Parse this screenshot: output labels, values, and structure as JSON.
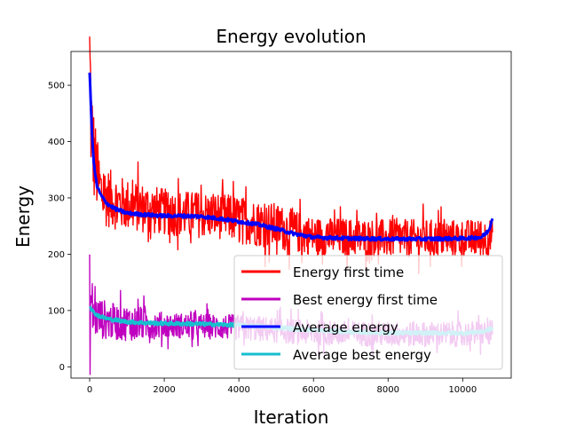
{
  "chart_data": {
    "type": "line",
    "title": "Energy evolution",
    "xlabel": "Iteration",
    "ylabel": "Energy",
    "xlim": [
      -500,
      11300
    ],
    "ylim": [
      -20,
      560
    ],
    "xticks": [
      0,
      2000,
      4000,
      6000,
      8000,
      10000
    ],
    "yticks": [
      0,
      100,
      200,
      300,
      400,
      500
    ],
    "grid": false,
    "legend_position": "lower-right",
    "series": [
      {
        "name": "Energy first time",
        "color": "#ff0000",
        "style": "noisy",
        "x": [
          0,
          50,
          100,
          200,
          300,
          500,
          800,
          1200,
          1600,
          2000,
          2500,
          3000,
          3500,
          4000,
          4500,
          5000,
          5500,
          6000,
          7000,
          8000,
          9000,
          10000,
          10500,
          10800
        ],
        "values": [
          540,
          420,
          380,
          340,
          310,
          300,
          290,
          285,
          280,
          275,
          272,
          270,
          268,
          262,
          255,
          250,
          240,
          232,
          230,
          228,
          228,
          228,
          228,
          230
        ],
        "spread": [
          200,
          150,
          120,
          90,
          80,
          70,
          65,
          60,
          60,
          55,
          55,
          55,
          55,
          55,
          55,
          55,
          50,
          45,
          45,
          45,
          45,
          45,
          45,
          45
        ]
      },
      {
        "name": "Best energy first time",
        "color": "#bf00bf",
        "style": "noisy",
        "x": [
          0,
          50,
          100,
          200,
          500,
          800,
          1200,
          1500,
          2000,
          3000,
          4000,
          5000,
          6000,
          8000,
          10000,
          10800
        ],
        "values": [
          130,
          110,
          95,
          88,
          82,
          78,
          78,
          76,
          74,
          72,
          70,
          65,
          60,
          58,
          58,
          60
        ],
        "spread": [
          110,
          80,
          60,
          50,
          45,
          42,
          42,
          38,
          30,
          30,
          30,
          30,
          30,
          30,
          30,
          30
        ]
      },
      {
        "name": "Average energy",
        "color": "#0000ff",
        "style": "smooth",
        "x": [
          0,
          30,
          60,
          100,
          150,
          200,
          300,
          400,
          500,
          700,
          1000,
          1500,
          2000,
          2500,
          3000,
          3500,
          4000,
          4500,
          5000,
          5500,
          6000,
          7000,
          8000,
          9000,
          10000,
          10500,
          10700,
          10800
        ],
        "values": [
          520,
          470,
          420,
          370,
          340,
          320,
          305,
          295,
          288,
          280,
          273,
          270,
          268,
          268,
          267,
          263,
          258,
          253,
          245,
          236,
          230,
          228,
          227,
          227,
          228,
          230,
          242,
          265
        ]
      },
      {
        "name": "Average best energy",
        "color": "#17becf",
        "style": "smooth",
        "x": [
          0,
          50,
          100,
          200,
          300,
          500,
          800,
          1000,
          1500,
          2000,
          3000,
          4000,
          5000,
          6000,
          7000,
          8000,
          9000,
          10000,
          10500,
          10800
        ],
        "values": [
          110,
          102,
          97,
          92,
          89,
          85,
          82,
          80,
          78,
          77,
          76,
          74,
          70,
          65,
          62,
          60,
          60,
          60,
          62,
          68
        ]
      }
    ]
  }
}
